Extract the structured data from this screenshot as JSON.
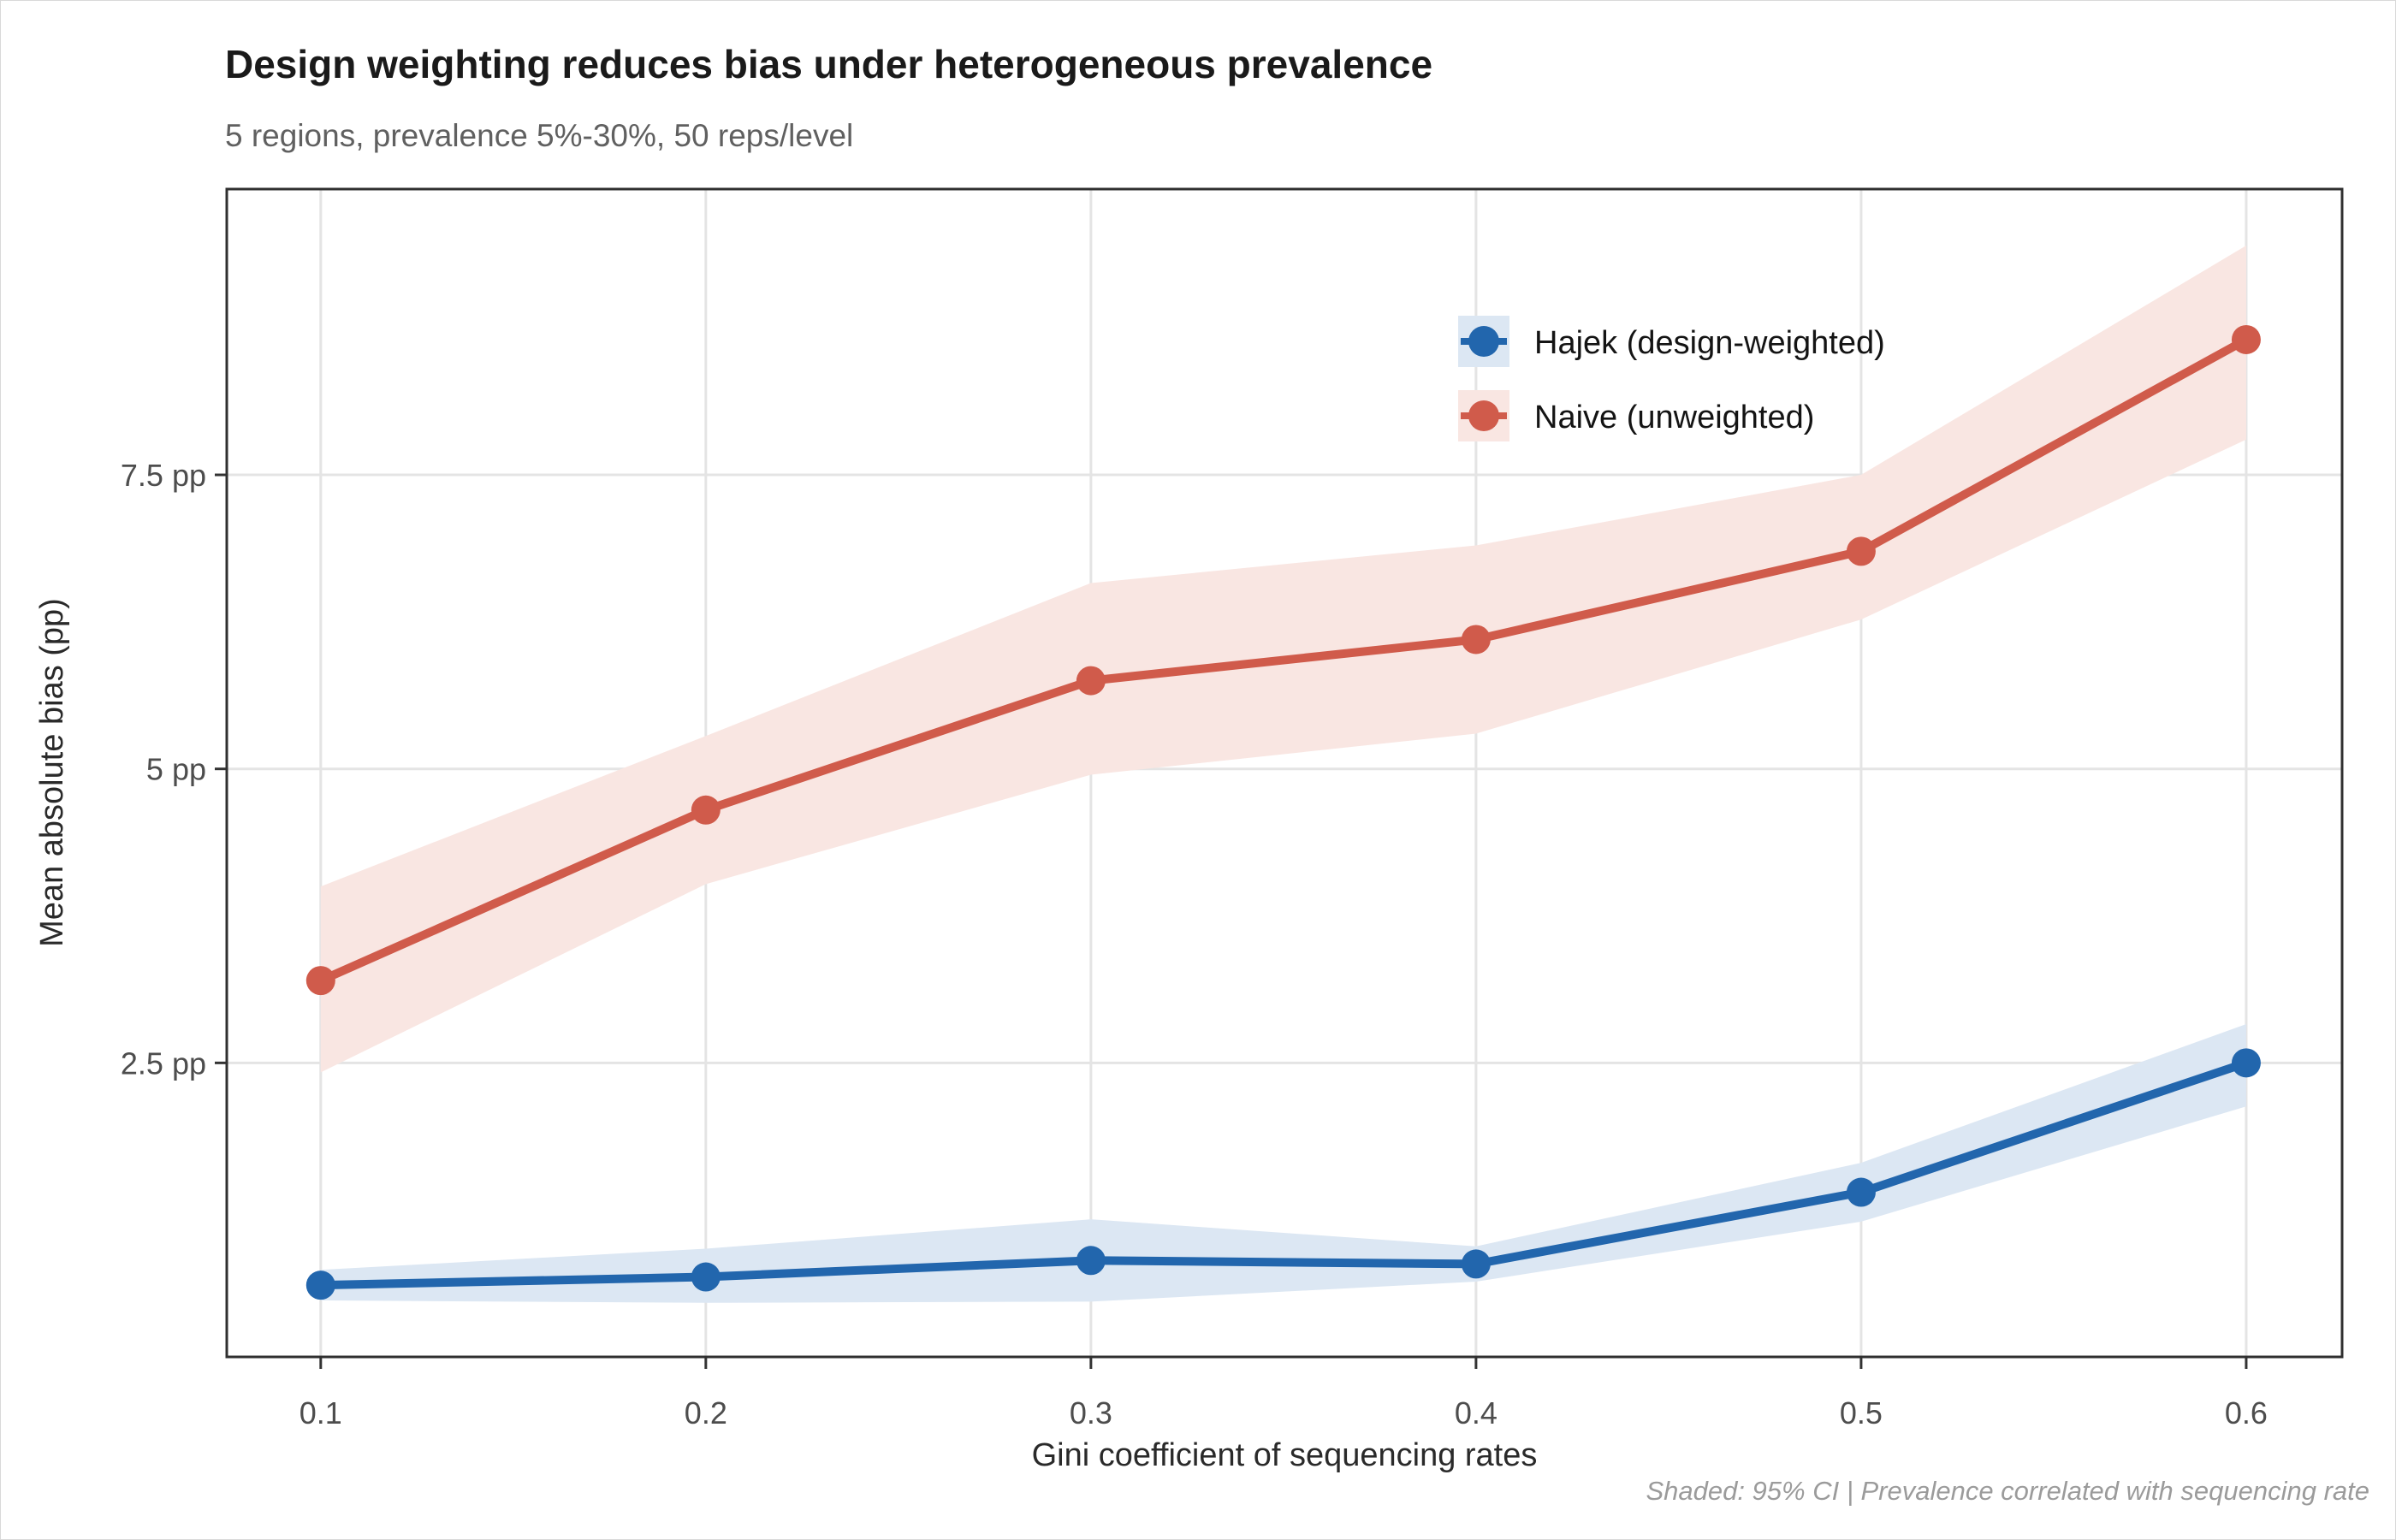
{
  "header": {
    "title": "Design weighting reduces bias under heterogeneous prevalence",
    "subtitle": "5 regions, prevalence 5%-30%, 50 reps/level"
  },
  "footer": {
    "caption": "Shaded: 95% CI | Prevalence correlated with sequencing rate"
  },
  "axes": {
    "x_label": "Gini coefficient of sequencing rates",
    "y_label": "Mean absolute bias (pp)",
    "x_ticks": [
      "0.1",
      "0.2",
      "0.3",
      "0.4",
      "0.5",
      "0.6"
    ],
    "y_ticks": [
      "2.5 pp",
      "5 pp",
      "7.5 pp"
    ]
  },
  "legend": {
    "items": [
      {
        "label": "Hajek (design-weighted)",
        "color": "#2266ad",
        "key_fill": "#dce7f3"
      },
      {
        "label": "Naive (unweighted)",
        "color": "#d05b4b",
        "key_fill": "#f9e6e2"
      }
    ]
  },
  "colors": {
    "gridline": "#e4e4e4",
    "panel_border": "#303030",
    "tick_mark": "#333333",
    "background": "#ffffff"
  },
  "chart_data": {
    "type": "line",
    "title": "Design weighting reduces bias under heterogeneous prevalence",
    "subtitle": "5 regions, prevalence 5%-30%, 50 reps/level",
    "xlabel": "Gini coefficient of sequencing rates",
    "ylabel": "Mean absolute bias (pp)",
    "x": [
      0.1,
      0.2,
      0.3,
      0.4,
      0.5,
      0.6
    ],
    "x_tick_values": [
      0.1,
      0.2,
      0.3,
      0.4,
      0.5,
      0.6
    ],
    "y_tick_values": [
      2.5,
      5,
      7.5
    ],
    "y_tick_labels": [
      "2.5 pp",
      "5 pp",
      "7.5 pp"
    ],
    "xlim": [
      0.0756,
      0.6249
    ],
    "ylim": [
      0.0,
      9.93
    ],
    "grid": "major-only",
    "legend_position": "top-right-inside",
    "ribbon_note": "shaded bands are 95% CI",
    "series": [
      {
        "name": "Hajek (design-weighted)",
        "color": "#2266ad",
        "ribbon_fill": "#dce7f3",
        "values": [
          0.61,
          0.68,
          0.82,
          0.79,
          1.4,
          2.5
        ],
        "ci_low": [
          0.48,
          0.46,
          0.47,
          0.64,
          1.15,
          2.13
        ],
        "ci_high": [
          0.74,
          0.92,
          1.17,
          0.94,
          1.65,
          2.83
        ]
      },
      {
        "name": "Naive (unweighted)",
        "color": "#d05b4b",
        "ribbon_fill": "#f9e6e2",
        "values": [
          3.2,
          4.65,
          5.75,
          6.1,
          6.85,
          8.65
        ],
        "ci_low": [
          2.42,
          4.02,
          4.95,
          5.3,
          6.27,
          7.8
        ],
        "ci_high": [
          4.0,
          5.28,
          6.58,
          6.9,
          7.5,
          9.45
        ]
      }
    ]
  }
}
